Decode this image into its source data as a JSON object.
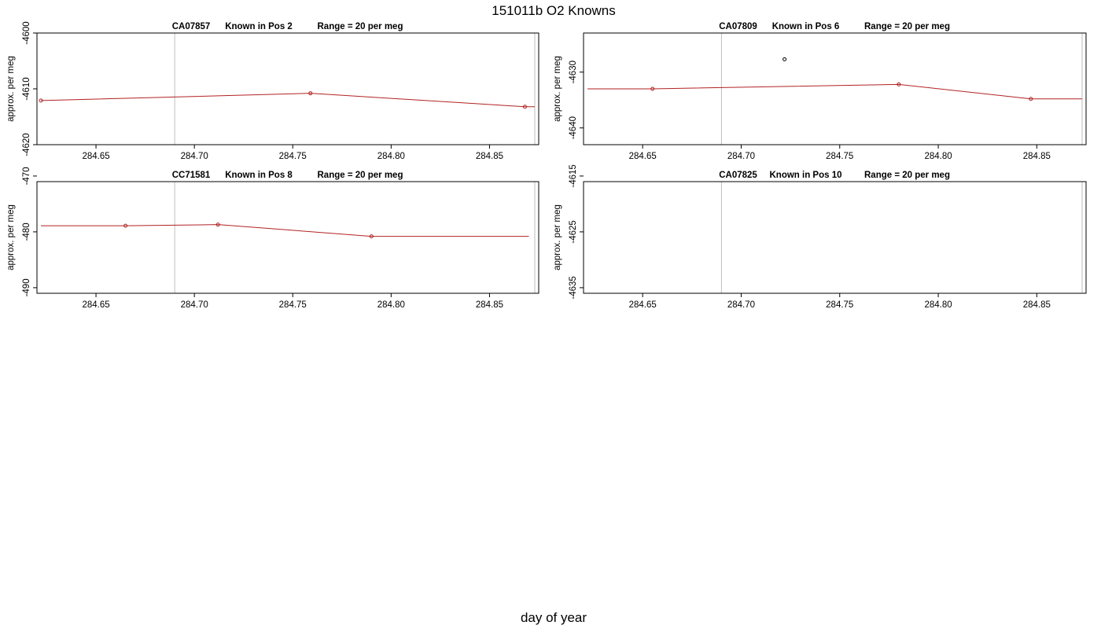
{
  "figure": {
    "title": "151011b   O2 Knowns",
    "xlabel": "day of year"
  },
  "colors": {
    "fit_line": "#b22222",
    "known_points": "#b22222",
    "outlier_points": "#000000",
    "marker_lines": "#bebebe",
    "axes": "#000000"
  },
  "chart_data": [
    {
      "type": "line",
      "title": "CA07857",
      "subtitle": "Known in Pos 2",
      "range_text": "Range = 20 per meg",
      "xlabel": "",
      "ylabel": "approx. per meg",
      "xlim": [
        284.62,
        284.875
      ],
      "ylim": [
        -4620,
        -4600
      ],
      "xticks": [
        "284.65",
        "284.70",
        "284.75",
        "284.80",
        "284.85"
      ],
      "yticks": [
        "-4600",
        "-4610",
        "-4620"
      ],
      "vlines": [
        284.69,
        284.873
      ],
      "fit_line": {
        "x": [
          284.622,
          284.759,
          284.868,
          284.873
        ],
        "y": [
          -4612.1,
          -4610.8,
          -4613.2,
          -4613.2
        ]
      },
      "points": {
        "x": [
          284.622,
          284.759,
          284.868
        ],
        "y": [
          -4612.1,
          -4610.8,
          -4613.2
        ]
      },
      "outliers": {
        "x": [],
        "y": []
      }
    },
    {
      "type": "line",
      "title": "CA07809",
      "subtitle": "Known in Pos 6",
      "range_text": "Range = 20 per meg",
      "xlabel": "",
      "ylabel": "approx. per meg",
      "xlim": [
        284.62,
        284.875
      ],
      "ylim": [
        -4643,
        -4623
      ],
      "xticks": [
        "284.65",
        "284.70",
        "284.75",
        "284.80",
        "284.85"
      ],
      "yticks": [
        "-4630",
        "-4640"
      ],
      "vlines": [
        284.69,
        284.873
      ],
      "fit_line": {
        "x": [
          284.622,
          284.655,
          284.78,
          284.847,
          284.873
        ],
        "y": [
          -4633.0,
          -4633.0,
          -4632.2,
          -4634.8,
          -4634.8
        ]
      },
      "points": {
        "x": [
          284.655,
          284.78,
          284.847
        ],
        "y": [
          -4633.0,
          -4632.2,
          -4634.8
        ]
      },
      "outliers": {
        "x": [
          284.722
        ],
        "y": [
          -4627.7
        ]
      }
    },
    {
      "type": "line",
      "title": "CC71581",
      "subtitle": "Known in Pos 8",
      "range_text": "Range = 20 per meg",
      "xlabel": "",
      "ylabel": "approx. per meg",
      "xlim": [
        284.62,
        284.875
      ],
      "ylim": [
        -491,
        -471
      ],
      "xticks": [
        "284.65",
        "284.70",
        "284.75",
        "284.80",
        "284.85"
      ],
      "yticks": [
        "-470",
        "-480",
        "-490"
      ],
      "vlines": [
        284.69,
        284.873
      ],
      "fit_line": {
        "x": [
          284.622,
          284.665,
          284.712,
          284.79,
          284.87
        ],
        "y": [
          -478.9,
          -478.9,
          -478.7,
          -480.8,
          -480.8
        ]
      },
      "points": {
        "x": [
          284.665,
          284.712,
          284.79
        ],
        "y": [
          -478.9,
          -478.7,
          -480.8
        ]
      },
      "outliers": {
        "x": [],
        "y": []
      }
    },
    {
      "type": "line",
      "title": "CA07825",
      "subtitle": "Known in Pos 10",
      "range_text": "Range = 20 per meg",
      "xlabel": "",
      "ylabel": "approx. per meg",
      "xlim": [
        284.62,
        284.875
      ],
      "ylim": [
        -4636,
        -4616
      ],
      "xticks": [
        "284.65",
        "284.70",
        "284.75",
        "284.80",
        "284.85"
      ],
      "yticks": [
        "-4615",
        "-4625",
        "-4635"
      ],
      "vlines": [
        284.69,
        284.873
      ],
      "fit_line": {
        "x": [],
        "y": []
      },
      "points": {
        "x": [],
        "y": []
      },
      "outliers": {
        "x": [],
        "y": []
      }
    }
  ]
}
